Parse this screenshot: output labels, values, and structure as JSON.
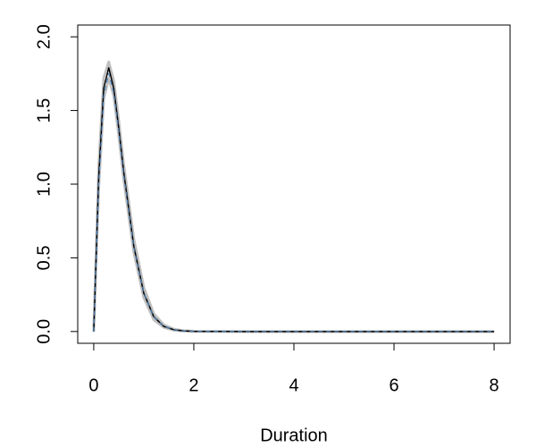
{
  "chart_data": {
    "type": "line",
    "xlabel": "Duration",
    "x": [
      0,
      0.1,
      0.2,
      0.3,
      0.4,
      0.5,
      0.6,
      0.8,
      1.0,
      1.2,
      1.4,
      1.6,
      1.8,
      2,
      3,
      4,
      5,
      6,
      7,
      8
    ],
    "series": [
      {
        "color": "#c0c0c0",
        "width": 3,
        "values": [
          0,
          1.12,
          1.72,
          1.83,
          1.7,
          1.43,
          1.13,
          0.63,
          0.3,
          0.12,
          0.045,
          0.016,
          0.006,
          0.002,
          0,
          0,
          0,
          0,
          0,
          0
        ]
      },
      {
        "color": "#c0c0c0",
        "width": 3,
        "values": [
          0,
          0.98,
          1.58,
          1.72,
          1.6,
          1.33,
          1.03,
          0.54,
          0.23,
          0.08,
          0.028,
          0.009,
          0.003,
          0.001,
          0,
          0,
          0,
          0,
          0,
          0
        ]
      },
      {
        "color": "#000000",
        "width": 1.5,
        "values": [
          0,
          1.05,
          1.65,
          1.79,
          1.65,
          1.38,
          1.08,
          0.58,
          0.26,
          0.1,
          0.035,
          0.012,
          0.004,
          0.001,
          0,
          0,
          0,
          0,
          0,
          0
        ]
      },
      {
        "color": "#4a7fb5",
        "width": 1.2,
        "dash": true,
        "values": [
          0,
          1.0,
          1.6,
          1.75,
          1.62,
          1.36,
          1.06,
          0.57,
          0.26,
          0.1,
          0.035,
          0.012,
          0.004,
          0.001,
          0,
          0,
          0,
          0,
          0,
          0
        ]
      }
    ],
    "xlim": [
      -0.32,
      8.32
    ],
    "ylim": [
      -0.08,
      2.08
    ],
    "xticks": [
      0,
      2,
      4,
      6,
      8
    ],
    "yticks": [
      {
        "value": 0,
        "label": "0.0"
      },
      {
        "value": 0.5,
        "label": "0.5"
      },
      {
        "value": 1,
        "label": "1.0"
      },
      {
        "value": 1.5,
        "label": "1.5"
      },
      {
        "value": 2,
        "label": "2.0"
      }
    ],
    "grid": false
  }
}
